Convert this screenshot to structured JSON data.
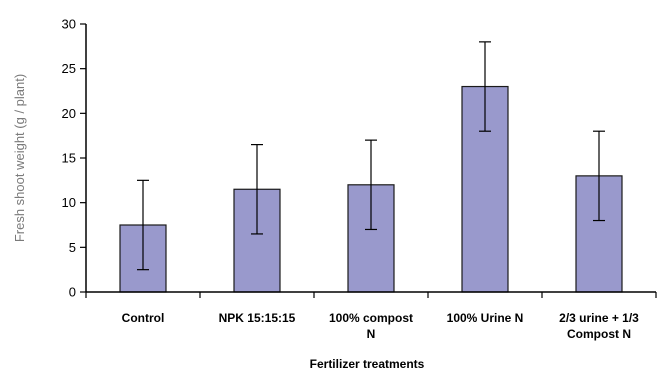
{
  "chart_data": {
    "type": "bar",
    "categories": [
      [
        "Control"
      ],
      [
        "NPK 15:15:15"
      ],
      [
        "100% compost",
        "N"
      ],
      [
        "100% Urine N"
      ],
      [
        "2/3 urine + 1/3",
        "Compost N"
      ]
    ],
    "values": [
      7.5,
      11.5,
      12.0,
      23.0,
      13.0
    ],
    "errors": [
      5.0,
      5.0,
      5.0,
      5.0,
      5.0
    ],
    "xlabel": "Fertilizer treatments",
    "ylabel": "Fresh shoot weight (g / plant)",
    "ylim": [
      0,
      30
    ],
    "yticks": [
      0,
      5,
      10,
      15,
      20,
      25,
      30
    ],
    "grid": false,
    "legend": "none",
    "colors": {
      "bar_fill": "#9999cc",
      "bar_stroke": "#1a1a1a",
      "axis": "#000000",
      "ylabel": "#7a7a7a"
    }
  }
}
